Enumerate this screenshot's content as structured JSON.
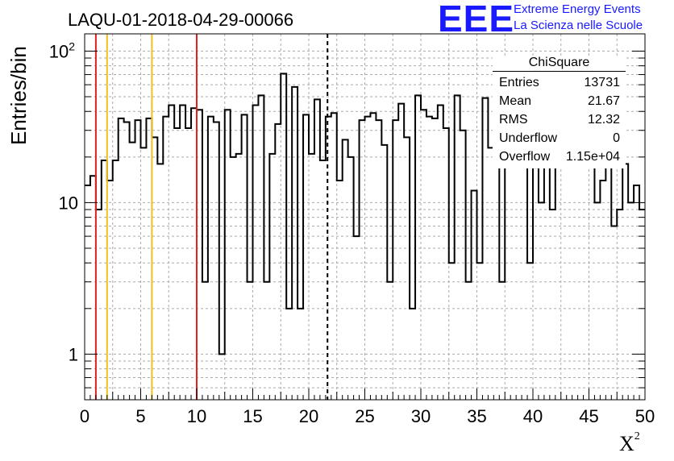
{
  "title": "LAQU-01-2018-04-29-00066",
  "logo": {
    "mark": "EEE",
    "line1": "Extreme Energy Events",
    "line2": "La Scienza nelle Scuole"
  },
  "stats": {
    "name": "ChiSquare",
    "rows": [
      {
        "key": "Entries",
        "value": "13731"
      },
      {
        "key": "Mean",
        "value": "21.67"
      },
      {
        "key": "RMS",
        "value": "12.32"
      },
      {
        "key": "Underflow",
        "value": "0"
      },
      {
        "key": "Overflow",
        "value": "1.15e+04"
      }
    ]
  },
  "chart_data": {
    "type": "histogram",
    "title": "LAQU-01-2018-04-29-00066",
    "xlabel": "X²",
    "ylabel": "Entries/bin",
    "xlim": [
      0,
      50
    ],
    "ylim": [
      0.5,
      130
    ],
    "yscale": "log",
    "grid": true,
    "bin_width": 0.5,
    "x_ticks": [
      "0",
      "5",
      "10",
      "15",
      "20",
      "25",
      "30",
      "35",
      "40",
      "45",
      "50"
    ],
    "y_ticks": [
      "1",
      "10",
      "10²"
    ],
    "values": [
      13,
      15,
      9,
      19,
      14,
      19,
      36,
      34,
      25,
      35,
      23,
      36,
      27,
      18,
      37,
      44,
      31,
      44,
      31,
      42,
      41,
      3,
      37,
      34,
      1,
      41,
      20,
      21,
      38,
      3,
      44,
      51,
      3,
      21,
      33,
      71,
      2,
      58,
      2,
      38,
      21,
      48,
      19,
      37,
      39,
      14,
      26,
      20,
      6,
      35,
      37,
      39,
      35,
      24,
      3,
      35,
      45,
      27,
      2,
      51,
      41,
      37,
      36,
      44,
      31,
      4,
      51,
      30,
      3,
      12,
      4,
      49,
      23,
      27,
      3,
      41,
      35,
      20,
      28,
      4,
      17,
      10,
      29,
      9,
      38,
      28,
      30,
      30,
      40,
      23,
      23,
      10,
      14,
      39,
      7,
      9,
      18,
      10,
      13,
      9
    ],
    "markers": [
      {
        "x": 1,
        "color": "#e62020",
        "style": "solid"
      },
      {
        "x": 2,
        "color": "#f0c020",
        "style": "solid"
      },
      {
        "x": 6,
        "color": "#f0c020",
        "style": "solid"
      },
      {
        "x": 10,
        "color": "#e62020",
        "style": "solid"
      },
      {
        "x": 21.67,
        "color": "#000000",
        "style": "dashed"
      }
    ]
  }
}
